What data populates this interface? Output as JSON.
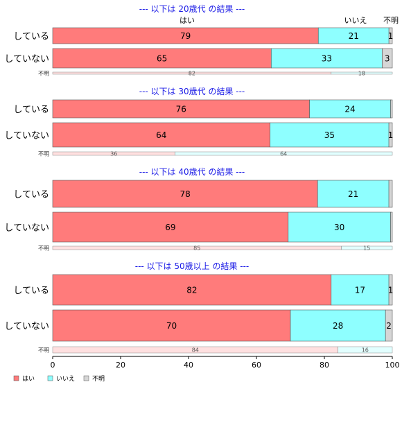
{
  "chart_data": {
    "type": "bar",
    "orientation": "horizontal",
    "stacked": true,
    "xlim": [
      0,
      100
    ],
    "xticks": [
      0,
      20,
      40,
      60,
      80,
      100
    ],
    "column_headers": [
      "はい",
      "いいえ",
      "不明"
    ],
    "legend": {
      "placement": "bottom-left",
      "entries": [
        {
          "name": "はい",
          "color": "#ff7b7b"
        },
        {
          "name": "いいえ",
          "color": "#8effff"
        },
        {
          "name": "不明",
          "color": "#d6d6d6"
        }
      ]
    },
    "groups": [
      {
        "title": "--- 以下は 20歳代 の結果 ---",
        "rows": [
          {
            "label": "している",
            "values": [
              79,
              21,
              1
            ],
            "labels": [
              "79",
              "21",
              "1"
            ]
          },
          {
            "label": "していない",
            "values": [
              65,
              33,
              3
            ],
            "labels": [
              "65",
              "33",
              "3"
            ]
          }
        ],
        "unknown_row": {
          "label": "不明",
          "values": [
            82,
            18
          ],
          "labels": [
            "82",
            "18"
          ]
        }
      },
      {
        "title": "--- 以下は 30歳代 の結果 ---",
        "rows": [
          {
            "label": "している",
            "values": [
              76,
              24,
              0.5
            ],
            "labels": [
              "76",
              "24",
              ""
            ]
          },
          {
            "label": "していない",
            "values": [
              64,
              35,
              1
            ],
            "labels": [
              "64",
              "35",
              "1"
            ]
          }
        ],
        "unknown_row": {
          "label": "不明",
          "values": [
            36,
            64
          ],
          "labels": [
            "36",
            "64"
          ]
        }
      },
      {
        "title": "--- 以下は 40歳代 の結果 ---",
        "rows": [
          {
            "label": "している",
            "values": [
              78,
              21,
              1
            ],
            "labels": [
              "78",
              "21",
              ""
            ]
          },
          {
            "label": "していない",
            "values": [
              69,
              30,
              0.5
            ],
            "labels": [
              "69",
              "30",
              ""
            ]
          }
        ],
        "unknown_row": {
          "label": "不明",
          "values": [
            85,
            15
          ],
          "labels": [
            "85",
            "15"
          ]
        }
      },
      {
        "title": "--- 以下は 50歳以上 の結果 ---",
        "rows": [
          {
            "label": "している",
            "values": [
              82,
              17,
              1
            ],
            "labels": [
              "82",
              "17",
              "1"
            ]
          },
          {
            "label": "していない",
            "values": [
              70,
              28,
              2
            ],
            "labels": [
              "70",
              "28",
              "2"
            ]
          }
        ],
        "unknown_row": {
          "label": "不明",
          "values": [
            84,
            16
          ],
          "labels": [
            "84",
            "16"
          ]
        }
      }
    ]
  }
}
